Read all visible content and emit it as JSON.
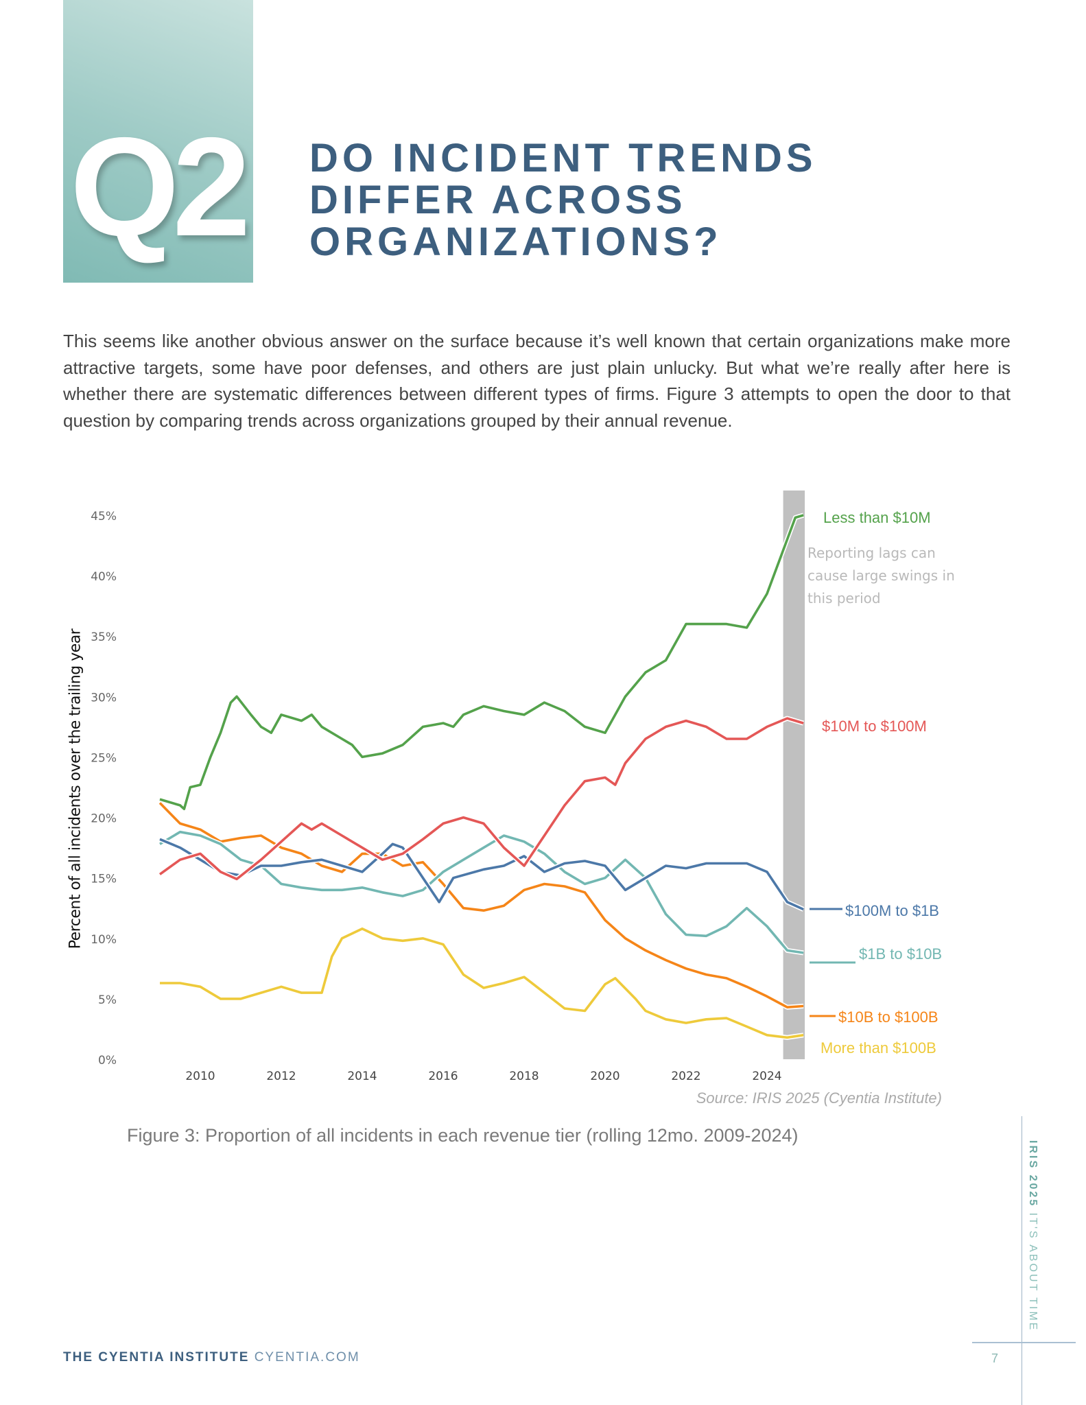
{
  "header": {
    "question_badge": "Q2",
    "title_lines": [
      "DO INCIDENT TRENDS",
      "DIFFER ACROSS",
      "ORGANIZATIONS?"
    ],
    "badge_color": "#9fcbc6",
    "title_color": "#3d5f7f"
  },
  "body_text": "This seems like another obvious answer on the surface because it’s well known that certain organizations make more attractive targets, some have poor defenses, and others are just plain unlucky. But what we’re really after here is whether there are systematic differences between different types of firms. Figure 3 attempts to open the door to that question by comparing trends across organizations grouped by their annual revenue.",
  "chart_data": {
    "type": "line",
    "ylabel": "Percent of all incidents over the trailing year",
    "xlabel": "",
    "ylim": [
      0,
      45
    ],
    "xlim": [
      2009,
      2024.9
    ],
    "y_ticks": [
      0,
      5,
      10,
      15,
      20,
      25,
      30,
      35,
      40,
      45
    ],
    "y_tick_labels": [
      "0%",
      "5%",
      "10%",
      "15%",
      "20%",
      "25%",
      "30%",
      "35%",
      "40%",
      "45%"
    ],
    "x_ticks": [
      2010,
      2012,
      2014,
      2016,
      2018,
      2020,
      2022,
      2024
    ],
    "x_tick_labels": [
      "2010",
      "2012",
      "2014",
      "2016",
      "2018",
      "2020",
      "2022",
      "2024"
    ],
    "grid": false,
    "legend": "direct labels at right end of lines",
    "highlight_band": {
      "x": [
        2024.4,
        2024.9
      ],
      "color": "#c0c0c0",
      "note": "Reporting lags can cause large swings in this period"
    },
    "series": [
      {
        "name": "Less than $10M",
        "color": "#54a24b",
        "points": [
          [
            2009,
            21.5
          ],
          [
            2009.5,
            21
          ],
          [
            2009.6,
            20.7
          ],
          [
            2009.75,
            22.5
          ],
          [
            2010,
            22.7
          ],
          [
            2010.25,
            25
          ],
          [
            2010.5,
            27
          ],
          [
            2010.75,
            29.5
          ],
          [
            2010.9,
            30
          ],
          [
            2011.25,
            28.5
          ],
          [
            2011.5,
            27.5
          ],
          [
            2011.75,
            27
          ],
          [
            2012,
            28.5
          ],
          [
            2012.5,
            28
          ],
          [
            2012.75,
            28.5
          ],
          [
            2013,
            27.5
          ],
          [
            2013.5,
            26.5
          ],
          [
            2013.75,
            26
          ],
          [
            2014,
            25
          ],
          [
            2014.5,
            25.3
          ],
          [
            2015,
            26
          ],
          [
            2015.5,
            27.5
          ],
          [
            2016,
            27.8
          ],
          [
            2016.25,
            27.5
          ],
          [
            2016.5,
            28.5
          ],
          [
            2017,
            29.2
          ],
          [
            2017.5,
            28.8
          ],
          [
            2018,
            28.5
          ],
          [
            2018.5,
            29.5
          ],
          [
            2019,
            28.8
          ],
          [
            2019.5,
            27.5
          ],
          [
            2020,
            27
          ],
          [
            2020.5,
            30
          ],
          [
            2021,
            32
          ],
          [
            2021.5,
            33
          ],
          [
            2022,
            36
          ],
          [
            2022.5,
            36
          ],
          [
            2023,
            36
          ],
          [
            2023.5,
            35.7
          ],
          [
            2024,
            38.5
          ],
          [
            2024.5,
            43
          ],
          [
            2024.7,
            44.8
          ],
          [
            2024.9,
            45
          ]
        ]
      },
      {
        "name": "$10M to $100M",
        "color": "#e45756",
        "points": [
          [
            2009,
            15.3
          ],
          [
            2009.5,
            16.5
          ],
          [
            2010,
            17
          ],
          [
            2010.5,
            15.5
          ],
          [
            2010.9,
            14.9
          ],
          [
            2011.5,
            16.5
          ],
          [
            2012,
            18
          ],
          [
            2012.5,
            19.5
          ],
          [
            2012.75,
            19
          ],
          [
            2013,
            19.5
          ],
          [
            2013.5,
            18.5
          ],
          [
            2014,
            17.5
          ],
          [
            2014.5,
            16.5
          ],
          [
            2015,
            17
          ],
          [
            2015.5,
            18.2
          ],
          [
            2016,
            19.5
          ],
          [
            2016.5,
            20
          ],
          [
            2017,
            19.5
          ],
          [
            2017.5,
            17.5
          ],
          [
            2018,
            16
          ],
          [
            2018.5,
            18.5
          ],
          [
            2019,
            21
          ],
          [
            2019.5,
            23
          ],
          [
            2020,
            23.3
          ],
          [
            2020.25,
            22.7
          ],
          [
            2020.5,
            24.5
          ],
          [
            2021,
            26.5
          ],
          [
            2021.5,
            27.5
          ],
          [
            2022,
            28
          ],
          [
            2022.5,
            27.5
          ],
          [
            2023,
            26.5
          ],
          [
            2023.5,
            26.5
          ],
          [
            2024,
            27.5
          ],
          [
            2024.5,
            28.2
          ],
          [
            2024.9,
            27.8
          ]
        ]
      },
      {
        "name": "$100M to $1B",
        "color": "#4c78a8",
        "points": [
          [
            2009,
            18.2
          ],
          [
            2009.5,
            17.5
          ],
          [
            2010,
            16.5
          ],
          [
            2010.5,
            15.5
          ],
          [
            2011,
            15.2
          ],
          [
            2011.5,
            16
          ],
          [
            2012,
            16
          ],
          [
            2012.5,
            16.3
          ],
          [
            2013,
            16.5
          ],
          [
            2013.5,
            16
          ],
          [
            2014,
            15.5
          ],
          [
            2014.5,
            17
          ],
          [
            2014.75,
            17.8
          ],
          [
            2015,
            17.5
          ],
          [
            2015.5,
            15
          ],
          [
            2015.9,
            13
          ],
          [
            2016.25,
            15
          ],
          [
            2017,
            15.7
          ],
          [
            2017.5,
            16
          ],
          [
            2018,
            16.8
          ],
          [
            2018.5,
            15.5
          ],
          [
            2019,
            16.2
          ],
          [
            2019.5,
            16.4
          ],
          [
            2020,
            16
          ],
          [
            2020.5,
            14
          ],
          [
            2021,
            15
          ],
          [
            2021.5,
            16
          ],
          [
            2022,
            15.8
          ],
          [
            2022.5,
            16.2
          ],
          [
            2023,
            16.2
          ],
          [
            2023.5,
            16.2
          ],
          [
            2024,
            15.5
          ],
          [
            2024.5,
            13
          ],
          [
            2024.9,
            12.4
          ]
        ]
      },
      {
        "name": "$1B to $10B",
        "color": "#72b7b2",
        "points": [
          [
            2009,
            17.8
          ],
          [
            2009.5,
            18.8
          ],
          [
            2010,
            18.5
          ],
          [
            2010.5,
            17.8
          ],
          [
            2011,
            16.5
          ],
          [
            2011.5,
            16
          ],
          [
            2012,
            14.5
          ],
          [
            2012.5,
            14.2
          ],
          [
            2013,
            14
          ],
          [
            2013.5,
            14
          ],
          [
            2014,
            14.2
          ],
          [
            2014.5,
            13.8
          ],
          [
            2015,
            13.5
          ],
          [
            2015.5,
            14
          ],
          [
            2016,
            15.5
          ],
          [
            2016.5,
            16.5
          ],
          [
            2017,
            17.5
          ],
          [
            2017.5,
            18.5
          ],
          [
            2018,
            18
          ],
          [
            2018.5,
            17
          ],
          [
            2019,
            15.5
          ],
          [
            2019.5,
            14.5
          ],
          [
            2020,
            15
          ],
          [
            2020.5,
            16.5
          ],
          [
            2021,
            15
          ],
          [
            2021.5,
            12
          ],
          [
            2022,
            10.3
          ],
          [
            2022.5,
            10.2
          ],
          [
            2023,
            11
          ],
          [
            2023.5,
            12.5
          ],
          [
            2024,
            11
          ],
          [
            2024.5,
            9
          ],
          [
            2024.9,
            8.8
          ]
        ]
      },
      {
        "name": "$10B to $100B",
        "color": "#f58518",
        "points": [
          [
            2009,
            21.2
          ],
          [
            2009.5,
            19.5
          ],
          [
            2010,
            19
          ],
          [
            2010.5,
            18
          ],
          [
            2011,
            18.3
          ],
          [
            2011.5,
            18.5
          ],
          [
            2012,
            17.5
          ],
          [
            2012.5,
            17
          ],
          [
            2013,
            16
          ],
          [
            2013.5,
            15.5
          ],
          [
            2014,
            17
          ],
          [
            2014.5,
            17
          ],
          [
            2015,
            16
          ],
          [
            2015.5,
            16.3
          ],
          [
            2016,
            14.5
          ],
          [
            2016.5,
            12.5
          ],
          [
            2017,
            12.3
          ],
          [
            2017.5,
            12.7
          ],
          [
            2018,
            14
          ],
          [
            2018.5,
            14.5
          ],
          [
            2019,
            14.3
          ],
          [
            2019.5,
            13.8
          ],
          [
            2020,
            11.5
          ],
          [
            2020.5,
            10
          ],
          [
            2021,
            9
          ],
          [
            2021.5,
            8.2
          ],
          [
            2022,
            7.5
          ],
          [
            2022.5,
            7
          ],
          [
            2023,
            6.7
          ],
          [
            2023.5,
            6
          ],
          [
            2024,
            5.2
          ],
          [
            2024.5,
            4.3
          ],
          [
            2024.9,
            4.4
          ]
        ]
      },
      {
        "name": "More than $100B",
        "color": "#eeca3b",
        "points": [
          [
            2009,
            6.3
          ],
          [
            2009.5,
            6.3
          ],
          [
            2010,
            6
          ],
          [
            2010.5,
            5
          ],
          [
            2011,
            5
          ],
          [
            2011.5,
            5.5
          ],
          [
            2012,
            6
          ],
          [
            2012.5,
            5.5
          ],
          [
            2013,
            5.5
          ],
          [
            2013.25,
            8.5
          ],
          [
            2013.5,
            10
          ],
          [
            2014,
            10.8
          ],
          [
            2014.5,
            10
          ],
          [
            2015,
            9.8
          ],
          [
            2015.5,
            10
          ],
          [
            2016,
            9.5
          ],
          [
            2016.5,
            7
          ],
          [
            2017,
            5.9
          ],
          [
            2017.5,
            6.3
          ],
          [
            2018,
            6.8
          ],
          [
            2018.5,
            5.5
          ],
          [
            2019,
            4.2
          ],
          [
            2019.5,
            4
          ],
          [
            2020,
            6.2
          ],
          [
            2020.25,
            6.7
          ],
          [
            2020.75,
            5
          ],
          [
            2021,
            4
          ],
          [
            2021.5,
            3.3
          ],
          [
            2022,
            3
          ],
          [
            2022.5,
            3.3
          ],
          [
            2023,
            3.4
          ],
          [
            2023.5,
            2.7
          ],
          [
            2024,
            2
          ],
          [
            2024.5,
            1.8
          ],
          [
            2024.9,
            2
          ]
        ]
      }
    ],
    "source": "Source: IRIS 2025 (Cyentia Institute)",
    "caption": "Figure 3: Proportion of all incidents in each revenue tier (rolling 12mo. 2009-2024)"
  },
  "sidebar": {
    "report": "IRIS 2025",
    "tagline": "IT'S ABOUT TIME"
  },
  "footer": {
    "org": "THE CYENTIA INSTITUTE",
    "site": "CYENTIA.COM",
    "page_number": "7"
  }
}
